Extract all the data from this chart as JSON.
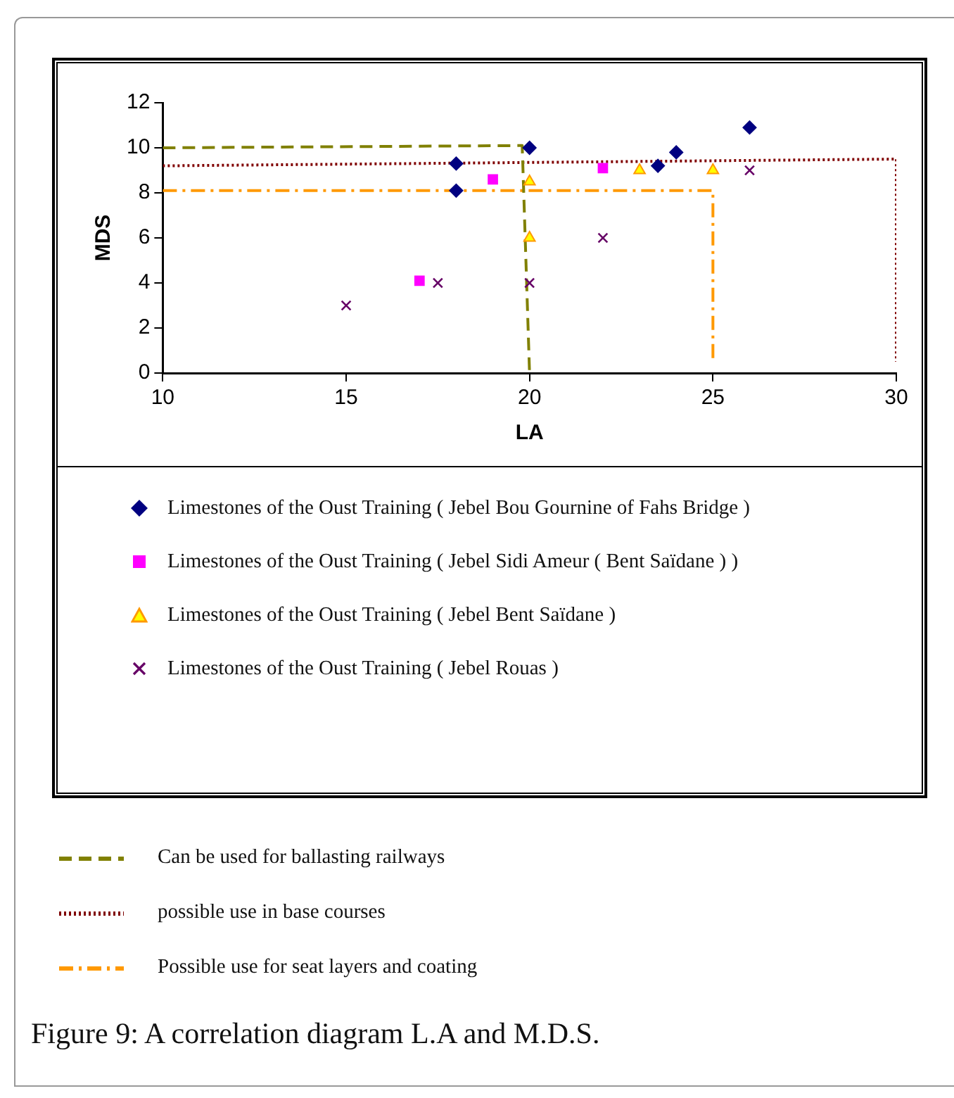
{
  "chart_data": {
    "type": "scatter",
    "xlabel": "LA",
    "ylabel": "MDS",
    "xlim": [
      10,
      30
    ],
    "xticks": [
      10,
      15,
      20,
      25,
      30
    ],
    "ylim": [
      0,
      12
    ],
    "yticks": [
      0,
      2,
      4,
      6,
      8,
      10,
      12
    ],
    "grid": false,
    "legend": "bottom",
    "series": [
      {
        "name": "Limestones of the Oust Training ( Jebel Bou Gournine of Fahs Bridge )",
        "color": "#000080",
        "marker": "diamond",
        "x": [
          18,
          18,
          20,
          23.5,
          24,
          26
        ],
        "values": [
          9.3,
          8.1,
          10,
          9.2,
          9.8,
          10.9
        ]
      },
      {
        "name": "Limestones of the Oust Training ( Jebel Sidi Ameur ( Bent Saïdane ) )",
        "color": "#ff00ff",
        "marker": "square",
        "x": [
          17,
          19,
          22
        ],
        "values": [
          4.1,
          8.6,
          9.1
        ]
      },
      {
        "name": "Limestones of the Oust Training ( Jebel Bent Saïdane )",
        "color": "#ffff00",
        "marker": "triangle",
        "x": [
          20,
          20,
          23,
          25
        ],
        "values": [
          8.5,
          6,
          9,
          9
        ]
      },
      {
        "name": "Limestones of the Oust Training ( Jebel Rouas )",
        "color": "#660066",
        "marker": "cross",
        "x": [
          15,
          17.5,
          20,
          22,
          26
        ],
        "values": [
          3,
          4,
          4,
          6,
          9
        ]
      },
      {
        "name": "Can be used for ballasting railways",
        "type": "line",
        "color": "#808000",
        "marker": "none",
        "line_style": "dashed",
        "x": [
          10,
          19.8,
          20
        ],
        "values": [
          10,
          10.1,
          0
        ]
      },
      {
        "name": "possible use in base courses",
        "type": "line",
        "color": "#800000",
        "marker": "none",
        "line_style": "dotted",
        "x": [
          10,
          30,
          30
        ],
        "values": [
          9.2,
          9.5,
          0.5
        ]
      },
      {
        "name": "Possible use for seat layers and coating",
        "type": "line",
        "color": "#ff9900",
        "marker": "none",
        "line_style": "dashdot",
        "x": [
          10,
          25,
          25
        ],
        "values": [
          8.1,
          8.1,
          0.5
        ]
      }
    ],
    "annotations": [
      "Figure 9: A correlation diagram L.A and M.D.S."
    ]
  }
}
